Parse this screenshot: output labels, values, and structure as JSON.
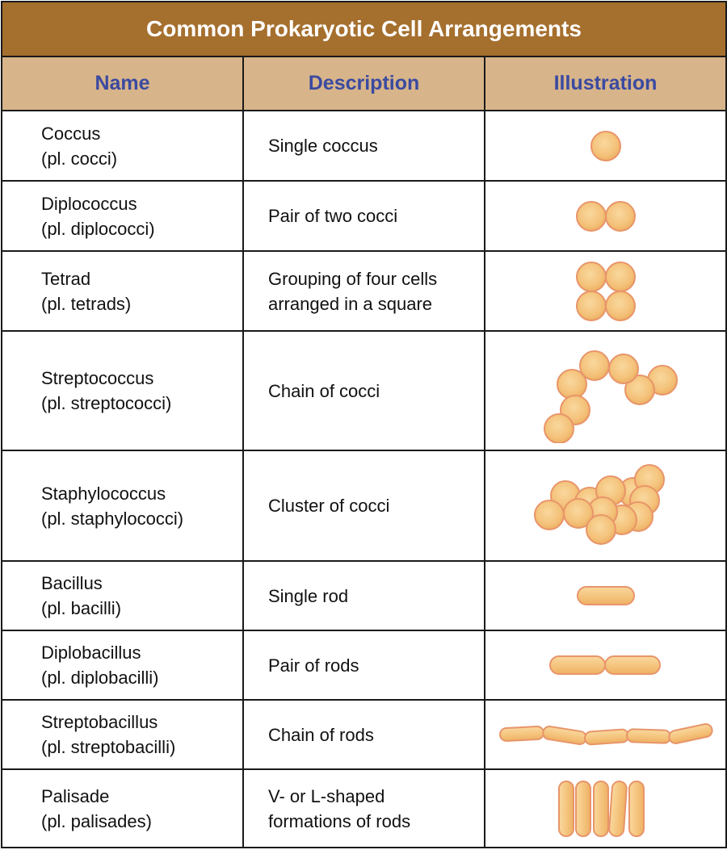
{
  "title": "Common Prokaryotic Cell Arrangements",
  "headers": {
    "name": "Name",
    "description": "Description",
    "illustration": "Illustration"
  },
  "colors": {
    "title_bg": "#a56f2e",
    "header_bg": "#d8b48a",
    "header_text": "#3a4aa0",
    "cell_fill": "#f4c27a",
    "cell_stroke": "#e8956a"
  },
  "rows": [
    {
      "name": "Coccus",
      "plural": "(pl. cocci)",
      "desc1": "Single coccus",
      "desc2": "",
      "illustration": "single-coccus"
    },
    {
      "name": "Diplococcus",
      "plural": "(pl. diplococci)",
      "desc1": "Pair of two cocci",
      "desc2": "",
      "illustration": "diplococcus"
    },
    {
      "name": "Tetrad",
      "plural": "(pl. tetrads)",
      "desc1": "Grouping of four cells",
      "desc2": "arranged in a square",
      "illustration": "tetrad"
    },
    {
      "name": "Streptococcus",
      "plural": "(pl. streptococci)",
      "desc1": "Chain of cocci",
      "desc2": "",
      "illustration": "streptococcus"
    },
    {
      "name": "Staphylococcus",
      "plural": "(pl. staphylococci)",
      "desc1": "Cluster of cocci",
      "desc2": "",
      "illustration": "staphylococcus"
    },
    {
      "name": "Bacillus",
      "plural": "(pl. bacilli)",
      "desc1": "Single rod",
      "desc2": "",
      "illustration": "bacillus"
    },
    {
      "name": "Diplobacillus",
      "plural": "(pl. diplobacilli)",
      "desc1": "Pair of rods",
      "desc2": "",
      "illustration": "diplobacillus"
    },
    {
      "name": "Streptobacillus",
      "plural": "(pl. streptobacilli)",
      "desc1": "Chain of rods",
      "desc2": "",
      "illustration": "streptobacillus"
    },
    {
      "name": "Palisade",
      "plural": "(pl. palisades)",
      "desc1": "V- or L-shaped",
      "desc2": "formations of rods",
      "illustration": "palisade"
    }
  ]
}
